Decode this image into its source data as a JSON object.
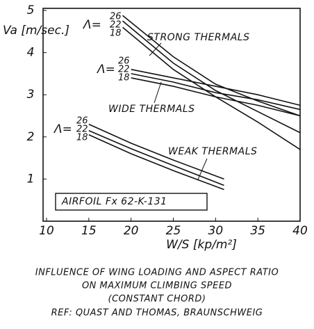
{
  "chart_data": {
    "type": "line",
    "y_label": "Va [m/sec.]",
    "x_label": "W/S [kp/m²]",
    "note": "AIRFOIL Fx 62-K-131",
    "caption": [
      "INFLUENCE OF WING LOADING AND ASPECT RATIO",
      "ON MAXIMUM CLIMBING SPEED",
      "(CONSTANT CHORD)",
      "REF: QUAST AND THOMAS, BRAUNSCHWEIG"
    ],
    "xlim": [
      10,
      40
    ],
    "ylim": [
      0,
      5
    ],
    "xticks": [
      10,
      15,
      20,
      25,
      30,
      35,
      40
    ],
    "yticks": [
      1,
      2,
      3,
      4,
      5
    ],
    "color": "#111111",
    "groups": [
      {
        "label": "STRONG THERMALS",
        "prefix": "Λ=",
        "series": [
          {
            "name": "26",
            "x": [
              19,
              25,
              30,
              35,
              40
            ],
            "values": [
              4.88,
              3.9,
              3.25,
              2.85,
              2.5
            ]
          },
          {
            "name": "22",
            "x": [
              19,
              25,
              30,
              35,
              40
            ],
            "values": [
              4.75,
              3.75,
              3.1,
              2.6,
              2.1
            ]
          },
          {
            "name": "18",
            "x": [
              19,
              25,
              30,
              35,
              40
            ],
            "values": [
              4.6,
              3.6,
              2.95,
              2.35,
              1.7
            ]
          }
        ]
      },
      {
        "label": "WIDE THERMALS",
        "prefix": "Λ=",
        "series": [
          {
            "name": "26",
            "x": [
              20,
              25,
              30,
              35,
              40
            ],
            "values": [
              3.6,
              3.4,
              3.2,
              3.0,
              2.75
            ]
          },
          {
            "name": "22",
            "x": [
              20,
              25,
              30,
              35,
              40
            ],
            "values": [
              3.5,
              3.3,
              3.05,
              2.88,
              2.65
            ]
          },
          {
            "name": "18",
            "x": [
              20,
              25,
              30,
              35,
              40
            ],
            "values": [
              3.4,
              3.2,
              2.95,
              2.75,
              2.5
            ]
          }
        ]
      },
      {
        "label": "WEAK THERMALS",
        "prefix": "Λ=",
        "series": [
          {
            "name": "26",
            "x": [
              15,
              20,
              25,
              31
            ],
            "values": [
              2.3,
              1.85,
              1.45,
              1.0
            ]
          },
          {
            "name": "22",
            "x": [
              15,
              20,
              25,
              31
            ],
            "values": [
              2.15,
              1.72,
              1.32,
              0.85
            ]
          },
          {
            "name": "18",
            "x": [
              15,
              20,
              25,
              31
            ],
            "values": [
              2.05,
              1.6,
              1.2,
              0.75
            ]
          }
        ]
      }
    ]
  }
}
